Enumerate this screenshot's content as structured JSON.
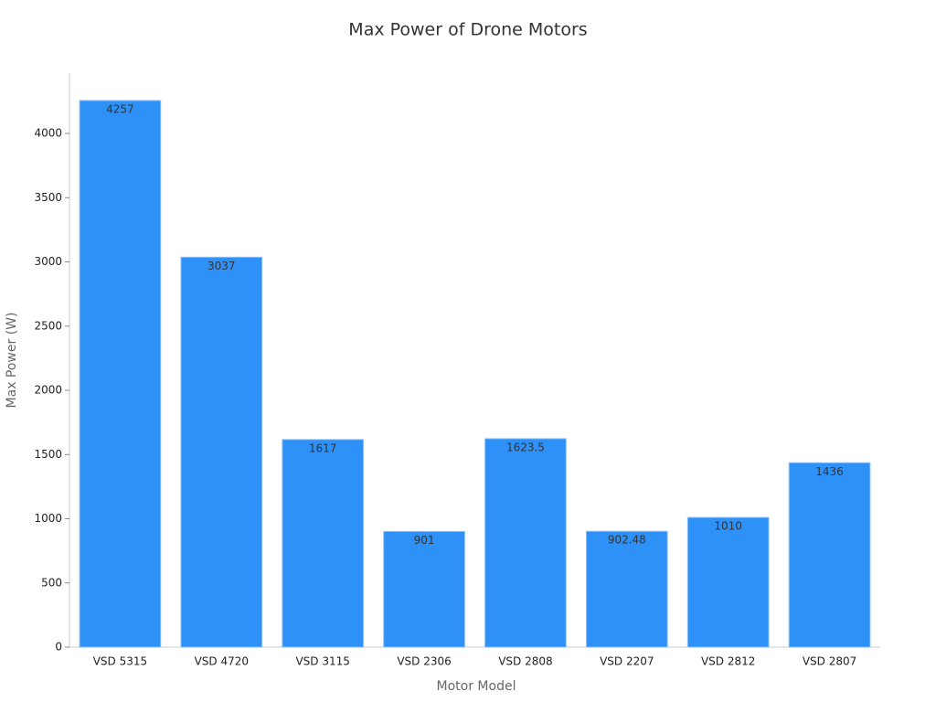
{
  "chart_data": {
    "type": "bar",
    "title": "Max Power of Drone Motors",
    "x_label": "Motor Model",
    "y_label": "Max Power (W)",
    "categories": [
      "VSD 5315",
      "VSD 4720",
      "VSD 3115",
      "VSD 2306",
      "VSD 2808",
      "VSD 2207",
      "VSD 2812",
      "VSD 2807"
    ],
    "values": [
      4257,
      3037,
      1617,
      901,
      1623.5,
      902.48,
      1010,
      1436
    ],
    "color": "#2e91f8",
    "ylim": [
      0,
      4470
    ],
    "yticks": [
      0,
      500,
      1000,
      1500,
      2000,
      2500,
      3000,
      3500,
      4000
    ],
    "grid": false
  }
}
